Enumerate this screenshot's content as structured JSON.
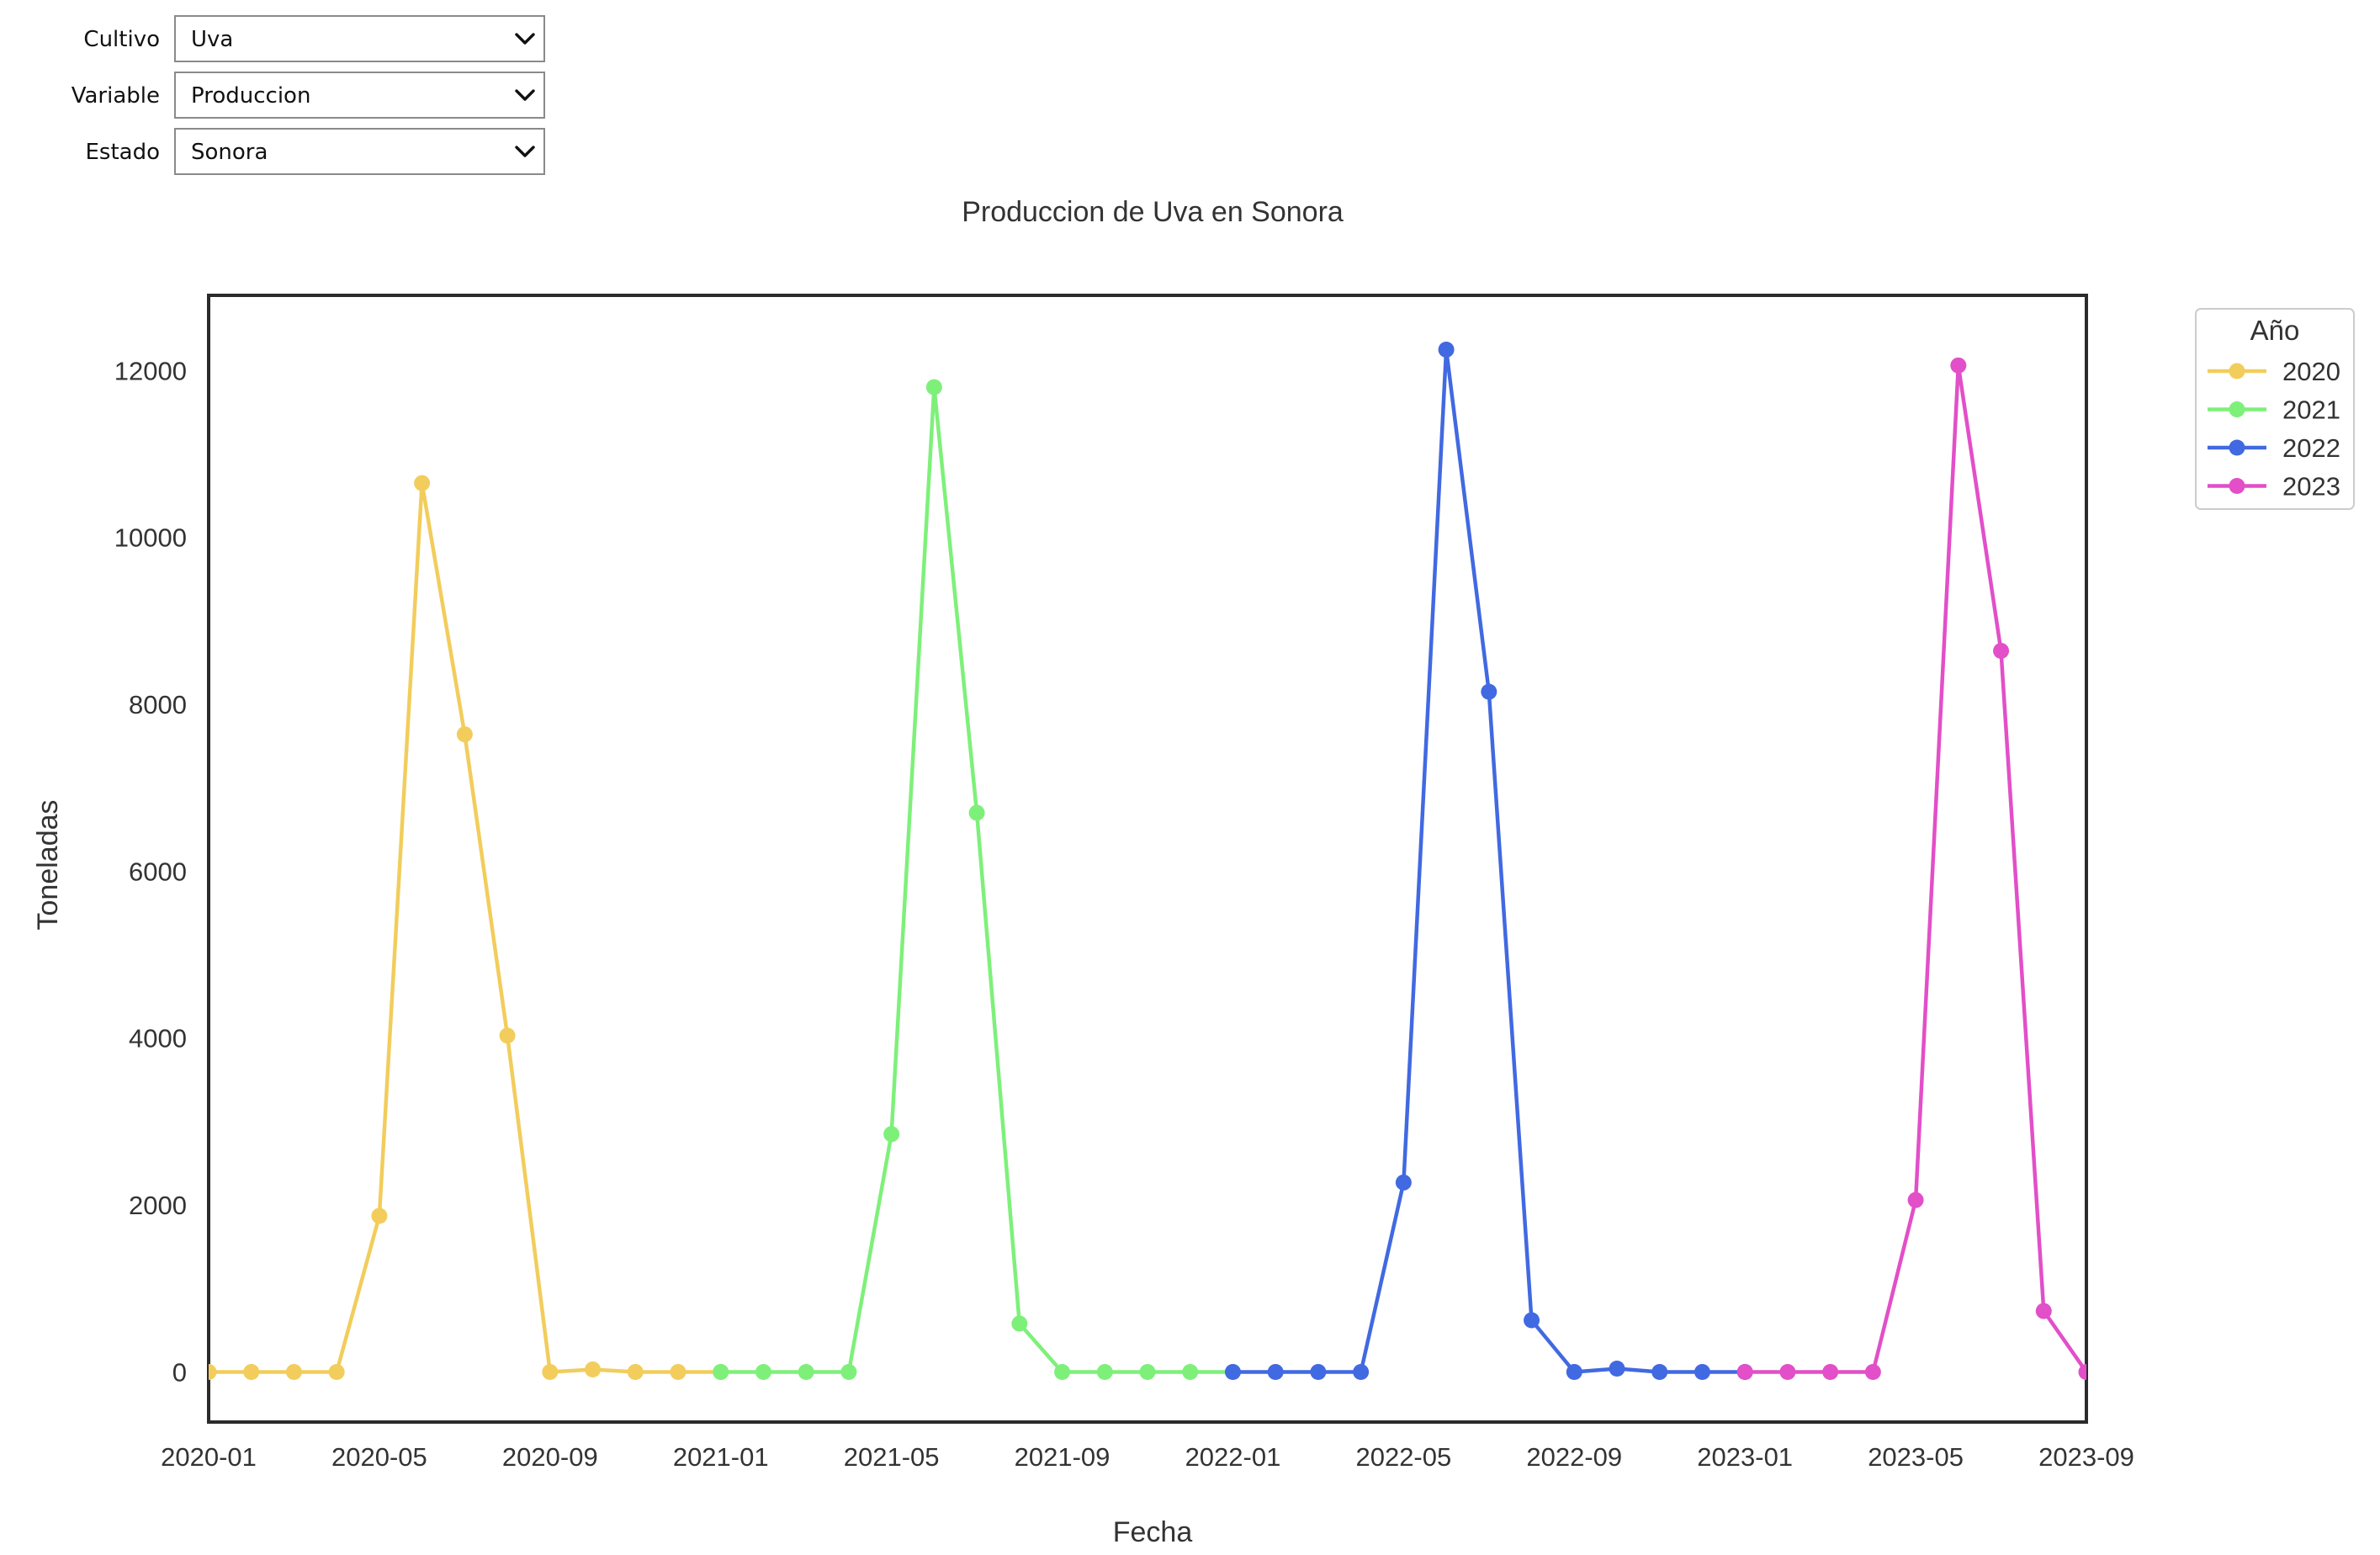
{
  "controls": [
    {
      "label": "Cultivo",
      "value": "Uva"
    },
    {
      "label": "Variable",
      "value": "Produccion"
    },
    {
      "label": "Estado",
      "value": "Sonora"
    }
  ],
  "chart_data": {
    "type": "line",
    "title": "Produccion de Uva en Sonora",
    "xlabel": "Fecha",
    "ylabel": "Toneladas",
    "x_ticks": [
      "2020-01",
      "2020-05",
      "2020-09",
      "2021-01",
      "2021-05",
      "2021-09",
      "2022-01",
      "2022-05",
      "2022-09",
      "2023-01",
      "2023-05",
      "2023-09"
    ],
    "y_ticks": [
      "0",
      "2000",
      "4000",
      "6000",
      "8000",
      "10000",
      "12000"
    ],
    "xlim": [
      "2020-01",
      "2023-09"
    ],
    "ylim": [
      -600,
      12900
    ],
    "grid": false,
    "legend": {
      "title": "Año",
      "position": "outside-top-right"
    },
    "series": [
      {
        "name": "2020",
        "color": "#f2cd5c",
        "points": [
          [
            "2020-01",
            0
          ],
          [
            "2020-02",
            0
          ],
          [
            "2020-03",
            0
          ],
          [
            "2020-04",
            0
          ],
          [
            "2020-05",
            1870
          ],
          [
            "2020-06",
            10650
          ],
          [
            "2020-07",
            7640
          ],
          [
            "2020-08",
            4030
          ],
          [
            "2020-09",
            0
          ],
          [
            "2020-10",
            30
          ],
          [
            "2020-11",
            0
          ],
          [
            "2020-12",
            0
          ],
          [
            "2021-01",
            0
          ]
        ]
      },
      {
        "name": "2021",
        "color": "#7ef07a",
        "points": [
          [
            "2021-01",
            0
          ],
          [
            "2021-02",
            0
          ],
          [
            "2021-03",
            0
          ],
          [
            "2021-04",
            0
          ],
          [
            "2021-05",
            2850
          ],
          [
            "2021-06",
            11800
          ],
          [
            "2021-07",
            6700
          ],
          [
            "2021-08",
            580
          ],
          [
            "2021-09",
            0
          ],
          [
            "2021-10",
            0
          ],
          [
            "2021-11",
            0
          ],
          [
            "2021-12",
            0
          ],
          [
            "2022-01",
            0
          ]
        ]
      },
      {
        "name": "2022",
        "color": "#4169e1",
        "points": [
          [
            "2022-01",
            0
          ],
          [
            "2022-02",
            0
          ],
          [
            "2022-03",
            0
          ],
          [
            "2022-04",
            0
          ],
          [
            "2022-05",
            2270
          ],
          [
            "2022-06",
            12250
          ],
          [
            "2022-07",
            8150
          ],
          [
            "2022-08",
            620
          ],
          [
            "2022-09",
            0
          ],
          [
            "2022-10",
            40
          ],
          [
            "2022-11",
            0
          ],
          [
            "2022-12",
            0
          ],
          [
            "2023-01",
            0
          ]
        ]
      },
      {
        "name": "2023",
        "color": "#e24fc8",
        "points": [
          [
            "2023-01",
            0
          ],
          [
            "2023-02",
            0
          ],
          [
            "2023-03",
            0
          ],
          [
            "2023-04",
            0
          ],
          [
            "2023-05",
            2060
          ],
          [
            "2023-06",
            12060
          ],
          [
            "2023-07",
            8640
          ],
          [
            "2023-08",
            730
          ],
          [
            "2023-09",
            0
          ]
        ]
      }
    ]
  }
}
